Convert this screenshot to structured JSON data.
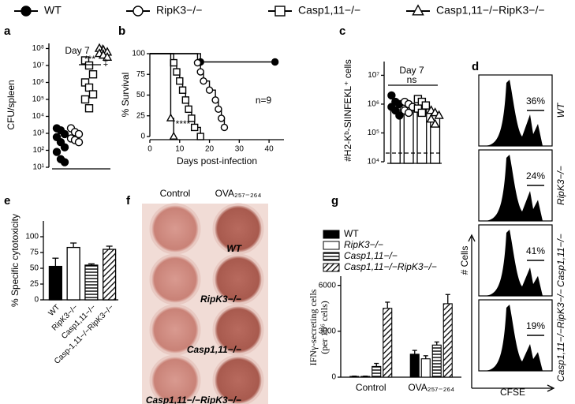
{
  "legend": [
    {
      "name": "WT",
      "marker": "circle-filled"
    },
    {
      "name": "RipK3−/−",
      "marker": "circle-open"
    },
    {
      "name": "Casp1,11−/−",
      "marker": "square-open"
    },
    {
      "name": "Casp1,11−/−RipK3−/−",
      "marker": "triangle-open"
    }
  ],
  "chart_data": [
    {
      "type": "strip",
      "panel": "a",
      "ylabel": "CFU/spleen",
      "log_y": true,
      "ylim": [
        10,
        200000000
      ],
      "yticks": [
        {
          "value": 10,
          "label": "10¹"
        },
        {
          "value": 100,
          "label": "10²"
        },
        {
          "value": 1000,
          "label": "10³"
        },
        {
          "value": 10000,
          "label": "10⁴"
        },
        {
          "value": 100000,
          "label": "10⁵"
        },
        {
          "value": 1000000,
          "label": "10⁶"
        },
        {
          "value": 10000000,
          "label": "10⁷"
        },
        {
          "value": 100000000,
          "label": "10⁸"
        }
      ],
      "annotations": [
        "Day 7",
        "***",
        "‡",
        "‡"
      ],
      "series": [
        {
          "marker": "circle-filled",
          "values": [
            2000,
            1500,
            900,
            600,
            300,
            150,
            80,
            30,
            20
          ]
        },
        {
          "marker": "circle-open",
          "values": [
            2000,
            1200,
            900,
            500,
            400,
            300
          ]
        },
        {
          "marker": "square-open",
          "values": [
            20000000,
            10000000,
            3000000,
            1000000,
            500000,
            200000,
            100000,
            30000
          ]
        },
        {
          "marker": "triangle-open",
          "values": [
            100000000,
            80000000,
            60000000,
            50000000,
            40000000,
            30000000
          ]
        }
      ]
    },
    {
      "type": "survival",
      "panel": "b",
      "ylabel": "% Survival",
      "xlabel": "Days post-infection",
      "xlim": [
        0,
        45
      ],
      "xticks": [
        0,
        10,
        20,
        30,
        40
      ],
      "ylim": [
        0,
        100
      ],
      "yticks": [
        0,
        25,
        50,
        75,
        100
      ],
      "annotations": [
        "n=9",
        "****"
      ],
      "series": [
        {
          "marker": "circle-filled",
          "x": [
            0,
            17,
            42
          ],
          "y": [
            100,
            90,
            90
          ]
        },
        {
          "marker": "circle-open",
          "x": [
            0,
            16,
            17,
            18,
            20,
            22,
            23,
            24,
            25
          ],
          "y": [
            100,
            89,
            78,
            67,
            56,
            44,
            33,
            22,
            11
          ]
        },
        {
          "marker": "square-open",
          "x": [
            0,
            8,
            9,
            10,
            11,
            12,
            13,
            14,
            15,
            17
          ],
          "y": [
            100,
            89,
            78,
            67,
            56,
            44,
            33,
            22,
            11,
            0
          ]
        },
        {
          "marker": "triangle-open",
          "x": [
            0,
            7,
            8
          ],
          "y": [
            100,
            22,
            0
          ]
        }
      ]
    },
    {
      "type": "strip",
      "panel": "c",
      "ylabel": "#H2-Kᵇ-SIINFEKL⁺ cells",
      "log_y": true,
      "ylim": [
        10000,
        30000000
      ],
      "yticks": [
        {
          "value": 10000,
          "label": "10⁴"
        },
        {
          "value": 100000,
          "label": "10⁵"
        },
        {
          "value": 1000000,
          "label": "10⁶"
        },
        {
          "value": 10000000,
          "label": "10⁷"
        }
      ],
      "annotations": [
        "Day 7",
        "ns"
      ],
      "hline": 20000,
      "means": [
        1000000,
        800000,
        900000,
        400000
      ],
      "series": [
        {
          "marker": "circle-filled",
          "values": [
            2000000,
            1200000,
            1000000,
            800000,
            600000,
            400000
          ]
        },
        {
          "marker": "circle-open",
          "values": [
            1200000,
            1000000,
            800000,
            600000,
            500000
          ]
        },
        {
          "marker": "square-open",
          "values": [
            1500000,
            1200000,
            900000,
            700000,
            500000
          ]
        },
        {
          "marker": "triangle-open",
          "values": [
            600000,
            500000,
            400000,
            300000,
            200000
          ]
        }
      ]
    },
    {
      "type": "flow",
      "panel": "d",
      "ylabel": "# Cells",
      "xlabel": "CFSE",
      "categories": [
        "WT",
        "RipK3−/−",
        "Casp1,11−/−",
        "Casp1,11−/−RipK3−/−"
      ],
      "values": [
        36,
        24,
        41,
        19
      ],
      "value_labels": [
        "36%",
        "24%",
        "41%",
        "19%"
      ]
    },
    {
      "type": "bar",
      "panel": "e",
      "ylabel": "% Specific cytotoxicity",
      "categories": [
        "WT",
        "RipK3−/−",
        "Casp1,11−/−",
        "Casp-1,11−/−RipK3−/−"
      ],
      "values": [
        53,
        83,
        55,
        80
      ],
      "errors": [
        13,
        7,
        2,
        5
      ],
      "patterns": [
        "solid",
        "open",
        "hstripe",
        "diag"
      ],
      "ylim": [
        0,
        125
      ],
      "yticks": [
        0,
        25,
        50,
        75,
        100
      ]
    },
    {
      "type": "groupbar",
      "panel": "g",
      "ylabel": [
        "IFNγ-secreting cells",
        "(per 10⁶ cells)"
      ],
      "categories": [
        "Control",
        "OVA₂₅₇₋₂₆₄"
      ],
      "ylim": [
        0,
        6600
      ],
      "yticks": [
        0,
        3000,
        6000
      ],
      "series": [
        {
          "name": "WT",
          "pattern": "solid",
          "values": [
            50,
            1500
          ],
          "errors": [
            20,
            250
          ]
        },
        {
          "name": "RipK3−/−",
          "pattern": "open",
          "values": [
            50,
            1200
          ],
          "errors": [
            20,
            200
          ]
        },
        {
          "name": "Casp1,11−/−",
          "pattern": "hstripe",
          "values": [
            700,
            2100
          ],
          "errors": [
            200,
            200
          ]
        },
        {
          "name": "Casp1,11−/−RipK3−/−",
          "pattern": "diag",
          "values": [
            4500,
            4800
          ],
          "errors": [
            400,
            600
          ]
        }
      ]
    }
  ],
  "panel_f": {
    "panel": "f",
    "columns": [
      "Control",
      "OVA₂₅₇₋₂₆₄"
    ],
    "rows": [
      "WT",
      "RipK3−/−",
      "Casp1,11−/−",
      "Casp1,11−/−RipK3−/−"
    ]
  }
}
